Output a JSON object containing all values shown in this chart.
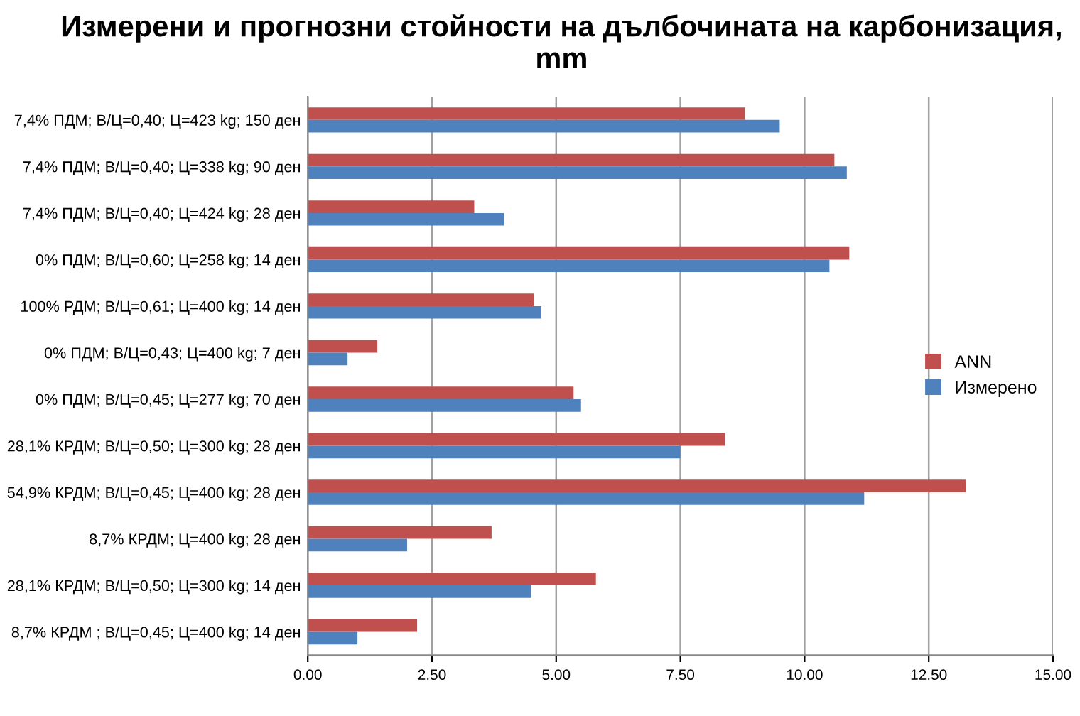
{
  "chart_data": {
    "type": "bar",
    "orientation": "horizontal",
    "title": "Измерени и прогнозни стойности на дълбочината на карбонизация, mm",
    "categories": [
      "7,4% ПДМ; В/Ц=0,40; Ц=423 kg; 150 ден",
      "7,4% ПДМ; В/Ц=0,40; Ц=338 kg; 90 ден",
      "7,4% ПДМ; В/Ц=0,40; Ц=424 kg; 28 ден",
      "0% ПДМ; В/Ц=0,60; Ц=258 kg; 14 ден",
      "100% РДМ; В/Ц=0,61; Ц=400 kg; 14 ден",
      "0% ПДМ; В/Ц=0,43; Ц=400 kg; 7 ден",
      "0% ПДМ; В/Ц=0,45; Ц=277 kg; 70 ден",
      "28,1% КРДМ; В/Ц=0,50; Ц=300 kg; 28 ден",
      "54,9% КРДМ; В/Ц=0,45; Ц=400 kg; 28 ден",
      "8,7% КРДМ; Ц=400 kg; 28 ден",
      "28,1% КРДМ; В/Ц=0,50; Ц=300 kg; 14 ден",
      "8,7% КРДМ ; В/Ц=0,45; Ц=400 kg; 14 ден"
    ],
    "series": [
      {
        "name": "ANN",
        "color": "#c0504d",
        "values": [
          8.8,
          10.6,
          3.35,
          10.9,
          4.55,
          1.4,
          5.35,
          8.4,
          13.25,
          3.7,
          5.8,
          2.2
        ]
      },
      {
        "name": "Измерено",
        "color": "#4f81bd",
        "values": [
          9.5,
          10.85,
          3.95,
          10.5,
          4.7,
          0.8,
          5.5,
          7.5,
          11.2,
          2.0,
          4.5,
          1.0
        ]
      }
    ],
    "xlim": [
      0,
      15
    ],
    "xticks": [
      {
        "value": 0,
        "label": "0.00"
      },
      {
        "value": 2.5,
        "label": "2.50"
      },
      {
        "value": 5,
        "label": "5.00"
      },
      {
        "value": 7.5,
        "label": "7.50"
      },
      {
        "value": 10,
        "label": "10.00"
      },
      {
        "value": 12.5,
        "label": "12.50"
      },
      {
        "value": 15,
        "label": "15.00"
      }
    ],
    "grid": "x",
    "legend": "right"
  }
}
